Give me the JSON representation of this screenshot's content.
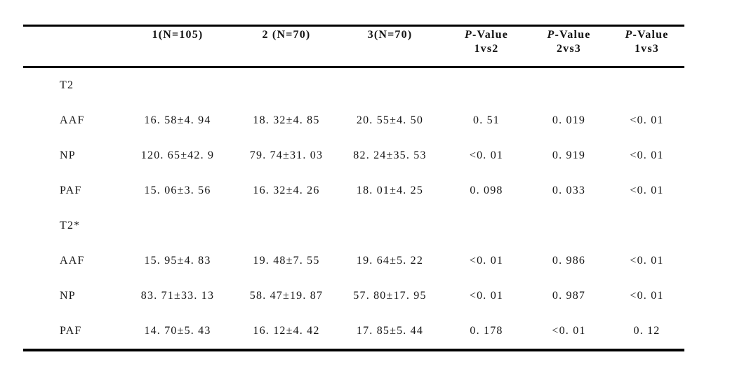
{
  "table": {
    "header": {
      "col0": "",
      "col1": "1(N=105)",
      "col2": "2 (N=70)",
      "col3": "3(N=70)",
      "pcols": [
        {
          "p": "P",
          "rest": "-Value",
          "sub": "1vs2"
        },
        {
          "p": "P",
          "rest": "-Value",
          "sub": "2vs3"
        },
        {
          "p": "P",
          "rest": "-Value",
          "sub": "1vs3"
        }
      ]
    },
    "rows": [
      {
        "label": "T2",
        "section": true,
        "values": [
          "",
          "",
          "",
          "",
          "",
          ""
        ]
      },
      {
        "label": "AAF",
        "section": false,
        "values": [
          "16. 58±4. 94",
          "18. 32±4. 85",
          "20. 55±4. 50",
          "0. 51",
          "0. 019",
          "<0. 01"
        ]
      },
      {
        "label": "NP",
        "section": false,
        "values": [
          "120. 65±42. 9",
          "79. 74±31. 03",
          "82. 24±35. 53",
          "<0. 01",
          "0. 919",
          "<0. 01"
        ]
      },
      {
        "label": "PAF",
        "section": false,
        "values": [
          "15. 06±3. 56",
          "16. 32±4. 26",
          "18. 01±4. 25",
          "0. 098",
          "0. 033",
          "<0. 01"
        ]
      },
      {
        "label": "T2*",
        "section": true,
        "values": [
          "",
          "",
          "",
          "",
          "",
          ""
        ]
      },
      {
        "label": "AAF",
        "section": false,
        "values": [
          "15. 95±4. 83",
          "19. 48±7. 55",
          "19. 64±5. 22",
          "<0. 01",
          "0. 986",
          "<0. 01"
        ]
      },
      {
        "label": "NP",
        "section": false,
        "values": [
          "83. 71±33. 13",
          "58. 47±19. 87",
          "57. 80±17. 95",
          "<0. 01",
          "0. 987",
          "<0. 01"
        ]
      },
      {
        "label": "PAF",
        "section": false,
        "values": [
          "14. 70±5. 43",
          "16. 12±4. 42",
          "17. 85±5. 44",
          "0. 178",
          "<0. 01",
          "0. 12"
        ]
      }
    ],
    "colors": {
      "background": "#ffffff",
      "text": "#141414",
      "rule": "#000000"
    }
  }
}
